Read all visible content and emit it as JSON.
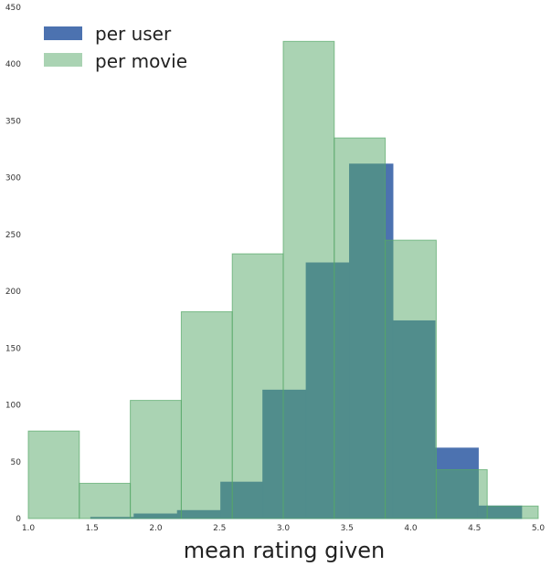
{
  "chart_data": {
    "type": "histogram",
    "title": "",
    "xlabel": "mean rating given",
    "ylabel": "",
    "xlim": [
      1.0,
      5.0
    ],
    "ylim": [
      0,
      450
    ],
    "grid": false,
    "legend_position": "top-left",
    "x_ticks": [
      "1.0",
      "1.5",
      "2.0",
      "2.5",
      "3.0",
      "3.5",
      "4.0",
      "4.5",
      "5.0"
    ],
    "x_tick_values": [
      1.0,
      1.5,
      2.0,
      2.5,
      3.0,
      3.5,
      4.0,
      4.5,
      5.0
    ],
    "y_ticks": [
      "0",
      "50",
      "100",
      "150",
      "200",
      "250",
      "300",
      "350",
      "400",
      "450"
    ],
    "y_tick_values": [
      0,
      50,
      100,
      150,
      200,
      250,
      300,
      350,
      400,
      450
    ],
    "series": [
      {
        "name": "per user",
        "color": "#4c72b0",
        "opacity": 1.0,
        "bins": [
          {
            "x0": 1.49,
            "x1": 1.83,
            "value": 1
          },
          {
            "x0": 1.83,
            "x1": 2.17,
            "value": 4
          },
          {
            "x0": 2.17,
            "x1": 2.51,
            "value": 7
          },
          {
            "x0": 2.51,
            "x1": 2.84,
            "value": 32
          },
          {
            "x0": 2.84,
            "x1": 3.18,
            "value": 113
          },
          {
            "x0": 3.18,
            "x1": 3.52,
            "value": 225
          },
          {
            "x0": 3.52,
            "x1": 3.86,
            "value": 312
          },
          {
            "x0": 3.86,
            "x1": 4.19,
            "value": 174
          },
          {
            "x0": 4.19,
            "x1": 4.53,
            "value": 62
          },
          {
            "x0": 4.53,
            "x1": 4.87,
            "value": 11
          }
        ]
      },
      {
        "name": "per movie",
        "color": "#55a868",
        "opacity": 0.5,
        "bins": [
          {
            "x0": 1.0,
            "x1": 1.4,
            "value": 77
          },
          {
            "x0": 1.4,
            "x1": 1.8,
            "value": 31
          },
          {
            "x0": 1.8,
            "x1": 2.2,
            "value": 104
          },
          {
            "x0": 2.2,
            "x1": 2.6,
            "value": 182
          },
          {
            "x0": 2.6,
            "x1": 3.0,
            "value": 233
          },
          {
            "x0": 3.0,
            "x1": 3.4,
            "value": 420
          },
          {
            "x0": 3.4,
            "x1": 3.8,
            "value": 335
          },
          {
            "x0": 3.8,
            "x1": 4.2,
            "value": 245
          },
          {
            "x0": 4.2,
            "x1": 4.6,
            "value": 43
          },
          {
            "x0": 4.6,
            "x1": 5.0,
            "value": 11
          }
        ]
      }
    ]
  }
}
